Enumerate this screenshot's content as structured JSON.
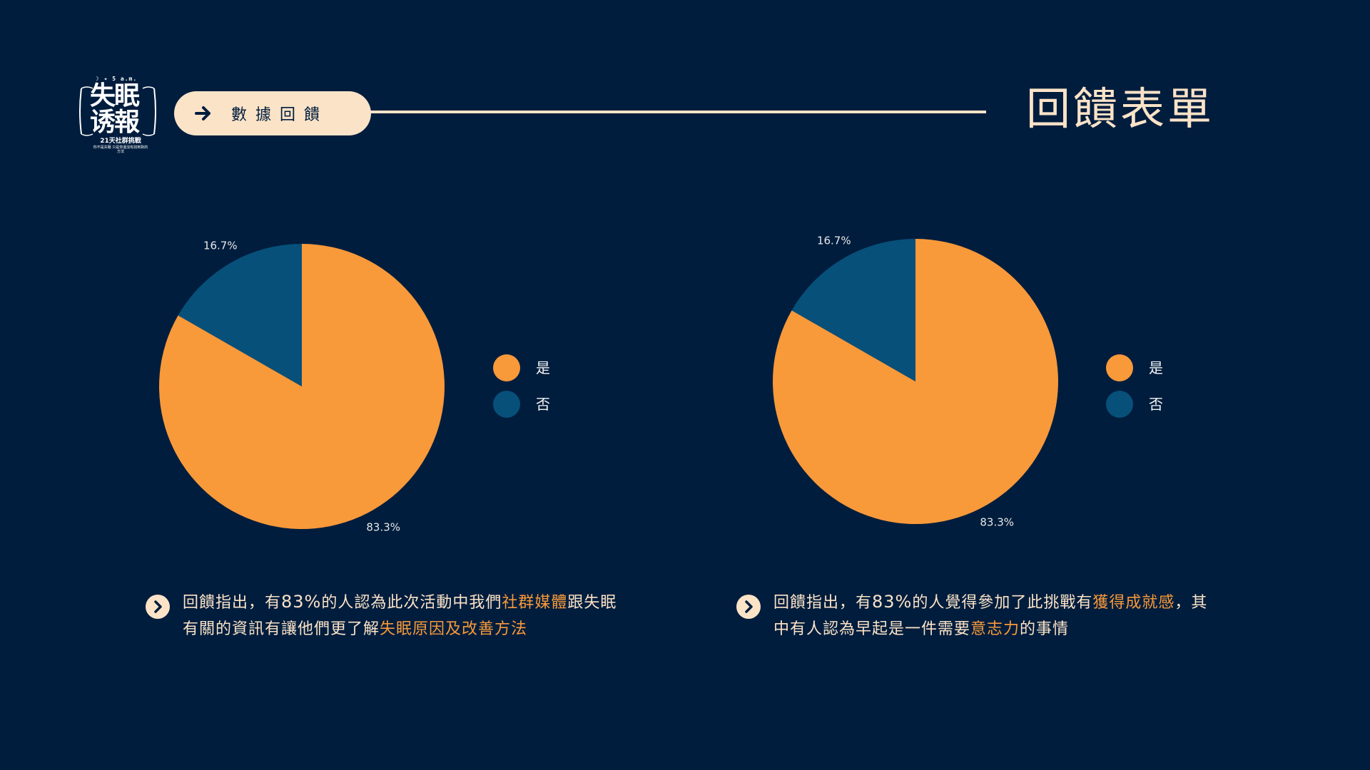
{
  "colors": {
    "background": "#001d3d",
    "accent": "#f8993a",
    "secondary": "#07507a",
    "cream": "#fbe3c8"
  },
  "logo": {
    "top_line": "☽ ✦ 5 a.m.",
    "main": "失眠\n诱報",
    "sub": "21天社群挑戰",
    "tiny": "你不是失眠 只是你還沒有找到對的方法"
  },
  "header": {
    "section_label": "數據回饋",
    "page_title": "回饋表單",
    "arrow_icon": "arrow-right-icon"
  },
  "chart_data": [
    {
      "type": "pie",
      "title": "",
      "categories": [
        "是",
        "否"
      ],
      "values": [
        83.3,
        16.7
      ],
      "labels": [
        "83.3%",
        "16.7%"
      ],
      "colors": [
        "#f8993a",
        "#07507a"
      ],
      "start_angle": 0,
      "legend": "right"
    },
    {
      "type": "pie",
      "title": "",
      "categories": [
        "是",
        "否"
      ],
      "values": [
        83.3,
        16.7
      ],
      "labels": [
        "83.3%",
        "16.7%"
      ],
      "colors": [
        "#f8993a",
        "#07507a"
      ],
      "start_angle": 0,
      "legend": "right"
    }
  ],
  "notes": [
    {
      "icon": "chevron-right-icon",
      "parts": [
        {
          "text": "回饋指出，有",
          "hl": false
        },
        {
          "text": "83%",
          "hl": false,
          "num": true
        },
        {
          "text": "的人認為此次活動中我們",
          "hl": false
        },
        {
          "text": "社群媒體",
          "hl": true
        },
        {
          "text": "跟失眠有關的資訊有讓他們更了解",
          "hl": false
        },
        {
          "text": "失眠原因及改善方法",
          "hl": true
        }
      ]
    },
    {
      "icon": "chevron-right-icon",
      "parts": [
        {
          "text": "回饋指出，有",
          "hl": false
        },
        {
          "text": "83%",
          "hl": false,
          "num": true
        },
        {
          "text": "的人覺得參加了此挑戰有",
          "hl": false
        },
        {
          "text": "獲得成就感",
          "hl": true
        },
        {
          "text": "，其中有人認為早起是一件需要",
          "hl": false
        },
        {
          "text": "意志力",
          "hl": true
        },
        {
          "text": "的事情",
          "hl": false
        }
      ]
    }
  ]
}
